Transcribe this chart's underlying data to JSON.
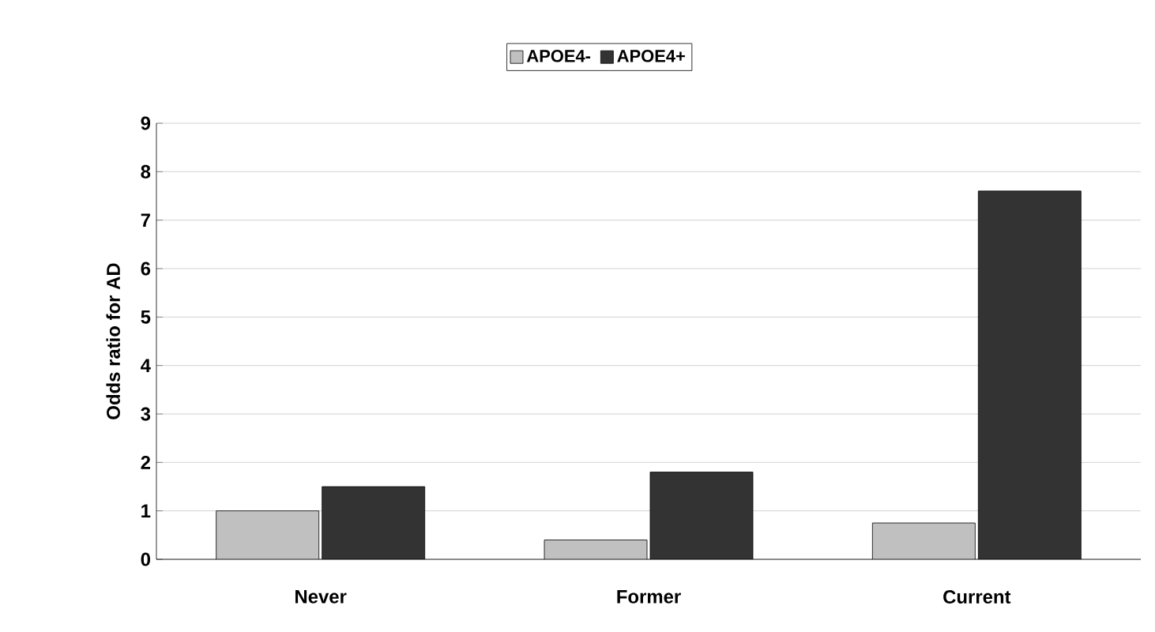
{
  "chart_data": {
    "type": "bar",
    "ylabel": "Odds ratio for AD",
    "categories": [
      "Never",
      "Former",
      "Current"
    ],
    "series": [
      {
        "name": "APOE4-",
        "color": "#c0c0c0",
        "values": [
          1.0,
          0.4,
          0.75
        ]
      },
      {
        "name": "APOE4+",
        "color": "#333333",
        "values": [
          1.5,
          1.8,
          7.6
        ]
      }
    ],
    "ylim": [
      0,
      9
    ],
    "yticks": [
      0,
      1,
      2,
      3,
      4,
      5,
      6,
      7,
      8,
      9
    ],
    "grid": "y",
    "legend": "top"
  }
}
